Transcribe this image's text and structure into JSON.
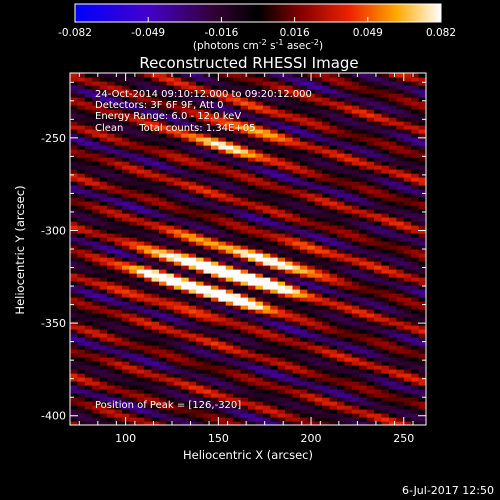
{
  "chart_data": {
    "type": "heatmap",
    "title": "Reconstructed RHESSI Image",
    "xlabel": "Heliocentric X (arcsec)",
    "ylabel": "Heliocentric Y (arcsec)",
    "xlim": [
      70,
      262
    ],
    "ylim": [
      -405,
      -215
    ],
    "x_ticks": [
      100,
      150,
      200,
      250
    ],
    "y_ticks": [
      -250,
      -300,
      -350,
      -400
    ],
    "colorbar": {
      "min": -0.082,
      "max": 0.082,
      "ticks": [
        "-0.082",
        "-0.049",
        "-0.016",
        "0.016",
        "0.049",
        "0.082"
      ],
      "unit_label": "(photons cm",
      "unit_exp1": "-2",
      "unit_mid": " s",
      "unit_exp2": "-1",
      "unit_end": " asec",
      "unit_exp3": "-2",
      "unit_close": ")"
    },
    "annotations": {
      "time_range": "24-Oct-2014 09:10:12.000 to 09:20:12.000",
      "detectors": "Detectors: 3F 6F 9F, Att 0",
      "energy": "Energy Range: 6.0 - 12.0 keV",
      "clean": "Clean     Total counts: 1.34E+05",
      "peak": "Position of Peak = [126,-320]"
    },
    "peak_position": [
      126,
      -320
    ],
    "sources": [
      {
        "x": 128,
        "y": -320,
        "value": 0.082
      },
      {
        "x": 160,
        "y": -332,
        "value": 0.07
      },
      {
        "x": 178,
        "y": -322,
        "value": 0.055
      },
      {
        "x": 160,
        "y": -250,
        "value": 0.05
      }
    ],
    "stripe_slope": -0.3
  },
  "footer_date": "6-Jul-2017 12:50"
}
